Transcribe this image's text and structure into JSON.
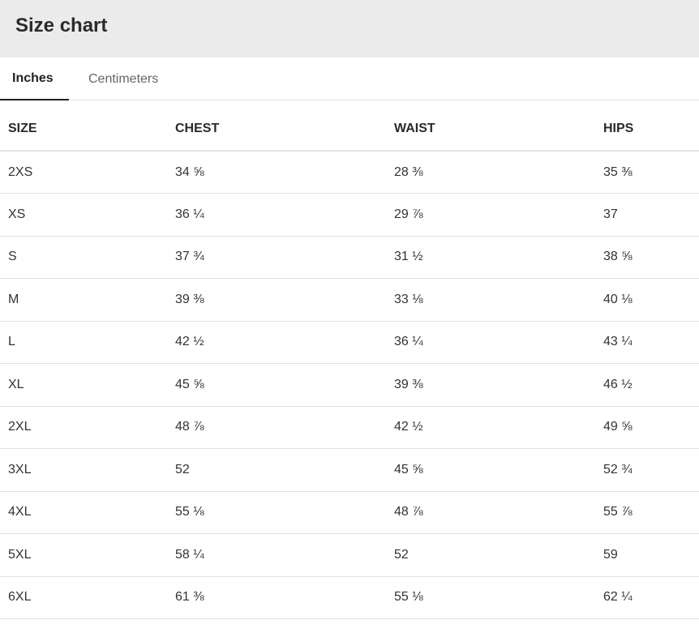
{
  "header": {
    "title": "Size chart"
  },
  "tabs": [
    {
      "label": "Inches",
      "active": true
    },
    {
      "label": "Centimeters",
      "active": false
    }
  ],
  "table": {
    "columns": [
      "SIZE",
      "CHEST",
      "WAIST",
      "HIPS"
    ],
    "rows": [
      [
        "2XS",
        "34 ⅝",
        "28 ⅜",
        "35 ⅜"
      ],
      [
        "XS",
        "36 ¼",
        "29 ⅞",
        "37"
      ],
      [
        "S",
        "37 ¾",
        "31 ½",
        "38 ⅝"
      ],
      [
        "M",
        "39 ⅜",
        "33 ⅛",
        "40 ⅛"
      ],
      [
        "L",
        "42 ½",
        "36 ¼",
        "43 ¼"
      ],
      [
        "XL",
        "45 ⅝",
        "39 ⅜",
        "46 ½"
      ],
      [
        "2XL",
        "48 ⅞",
        "42 ½",
        "49 ⅝"
      ],
      [
        "3XL",
        "52",
        "45 ⅝",
        "52 ¾"
      ],
      [
        "4XL",
        "55 ⅛",
        "48 ⅞",
        "55 ⅞"
      ],
      [
        "5XL",
        "58 ¼",
        "52",
        "59"
      ],
      [
        "6XL",
        "61 ⅜",
        "55 ⅛",
        "62 ¼"
      ]
    ]
  },
  "colors": {
    "header_bg": "#ebebeb",
    "active_tab_underline": "#222222",
    "divider": "#e3e3e3"
  }
}
